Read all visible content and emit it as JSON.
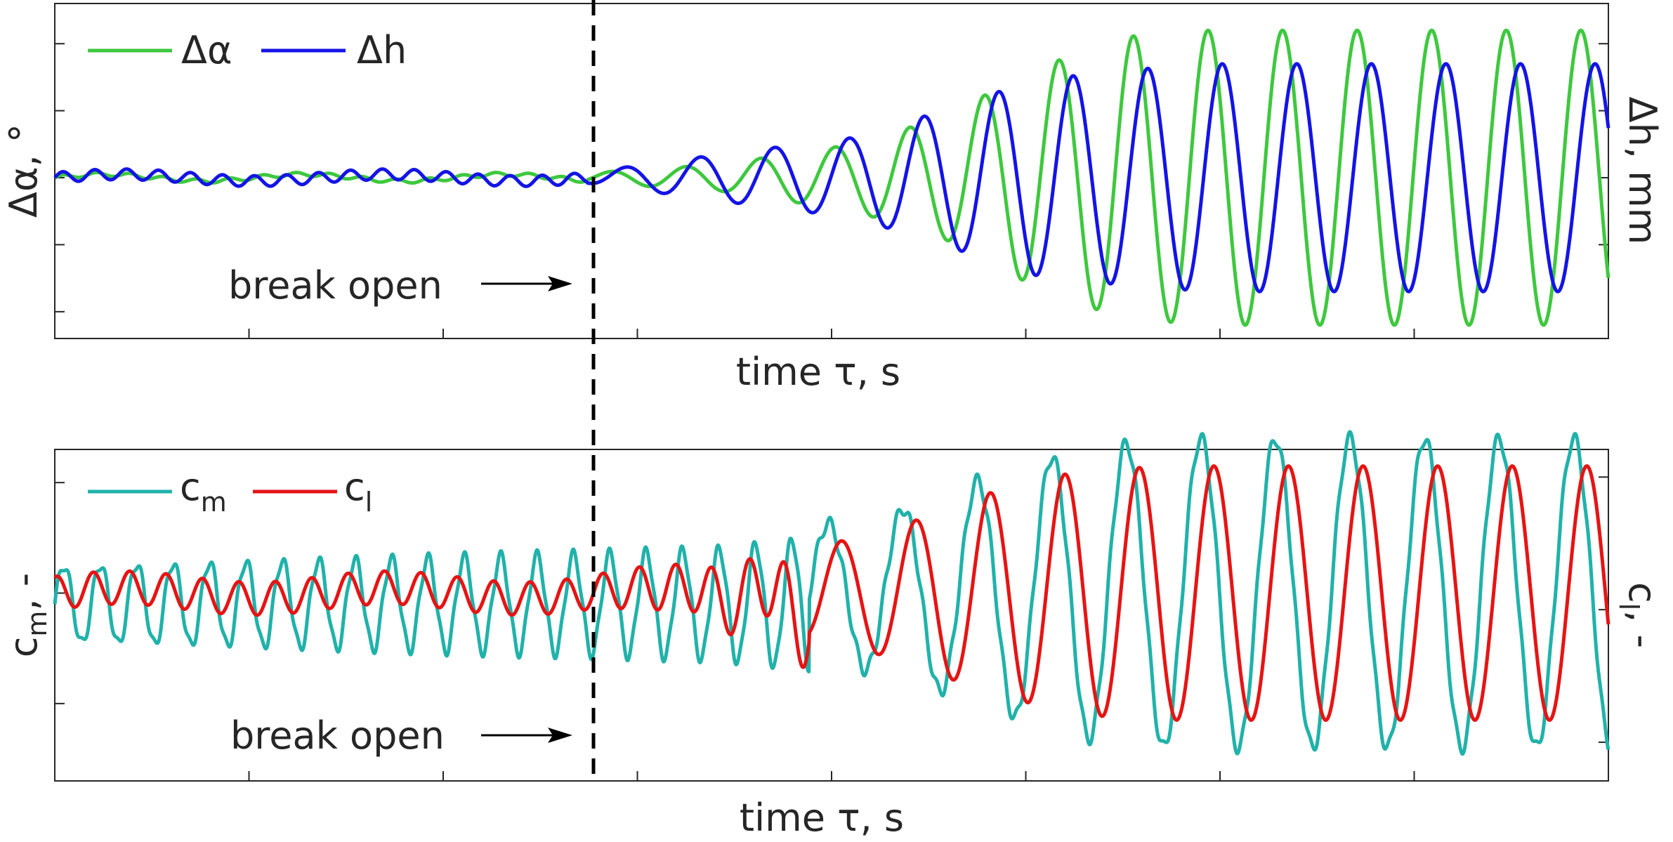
{
  "chart_data": [
    {
      "type": "line",
      "xlabel": "time τ, s",
      "ylabel_left": "Δα, °",
      "ylabel_right": "Δh, mm",
      "x_ticks": 8,
      "xlim": [
        0,
        35
      ],
      "ylim_left": [
        -2.4,
        2.6
      ],
      "ylim_right": [
        -2.4,
        2.6
      ],
      "grid": false,
      "legend_position": "top-left",
      "series": [
        {
          "name": "Δα",
          "color": "#3ec83e",
          "axis": "left"
        },
        {
          "name": "Δh",
          "color": "#1414e6",
          "axis": "right"
        }
      ],
      "annotation": {
        "text": "break open",
        "x": 12.1
      },
      "envelope": {
        "t": [
          0,
          12,
          15,
          18,
          20,
          22,
          24,
          26,
          35
        ],
        "alpha_amp": [
          0.05,
          0.07,
          0.2,
          0.5,
          0.9,
          1.6,
          2.1,
          2.2,
          2.2
        ],
        "h_amp": [
          0.08,
          0.08,
          0.35,
          0.6,
          1.0,
          1.45,
          1.6,
          1.7,
          1.7
        ]
      }
    },
    {
      "type": "line",
      "xlabel": "time τ, s",
      "ylabel_left": "c_m, -",
      "ylabel_right": "c_l, -",
      "x_ticks": 8,
      "xlim": [
        0,
        35
      ],
      "ylim_left": [
        -1.7,
        1.3
      ],
      "ylim_right": [
        -1.7,
        1.3
      ],
      "grid": false,
      "legend_position": "top-left",
      "series": [
        {
          "name": "c_m",
          "color": "#20b2aa",
          "axis": "left"
        },
        {
          "name": "c_l",
          "color": "#e61414",
          "axis": "right"
        }
      ],
      "annotation": {
        "text": "break open",
        "x": 12.1
      },
      "envelope": {
        "t": [
          0,
          12,
          15,
          17,
          19,
          21,
          23,
          25,
          35
        ],
        "cm_amp": [
          0.35,
          0.45,
          0.5,
          0.6,
          0.75,
          1.05,
          1.3,
          1.4,
          1.4
        ],
        "cl_amp": [
          0.15,
          0.15,
          0.25,
          0.4,
          0.6,
          0.9,
          1.1,
          1.15,
          1.15
        ]
      }
    }
  ],
  "legend": {
    "top": {
      "s1": "Δα",
      "s2": "Δh"
    },
    "bottom": {
      "s1_base": "c",
      "s1_sub": "m",
      "s2_base": "c",
      "s2_sub": "l"
    }
  },
  "labels": {
    "top_xlabel": "time τ, s",
    "bottom_xlabel": "time τ, s",
    "top_ylabel_left": "Δα, °",
    "top_ylabel_right": "Δh, mm",
    "bottom_ylabel_left_base": "c",
    "bottom_ylabel_left_sub": "m",
    "bottom_ylabel_left_suffix": ", -",
    "bottom_ylabel_right_base": "c",
    "bottom_ylabel_right_sub": "l",
    "bottom_ylabel_right_suffix": ", -",
    "annotation_top": "break open",
    "annotation_bottom": "break open"
  },
  "colors": {
    "alpha": "#3ec83e",
    "h": "#1414e6",
    "cm": "#20b2aa",
    "cl": "#e61414",
    "axis": "#262626",
    "break_line": "#000000"
  }
}
